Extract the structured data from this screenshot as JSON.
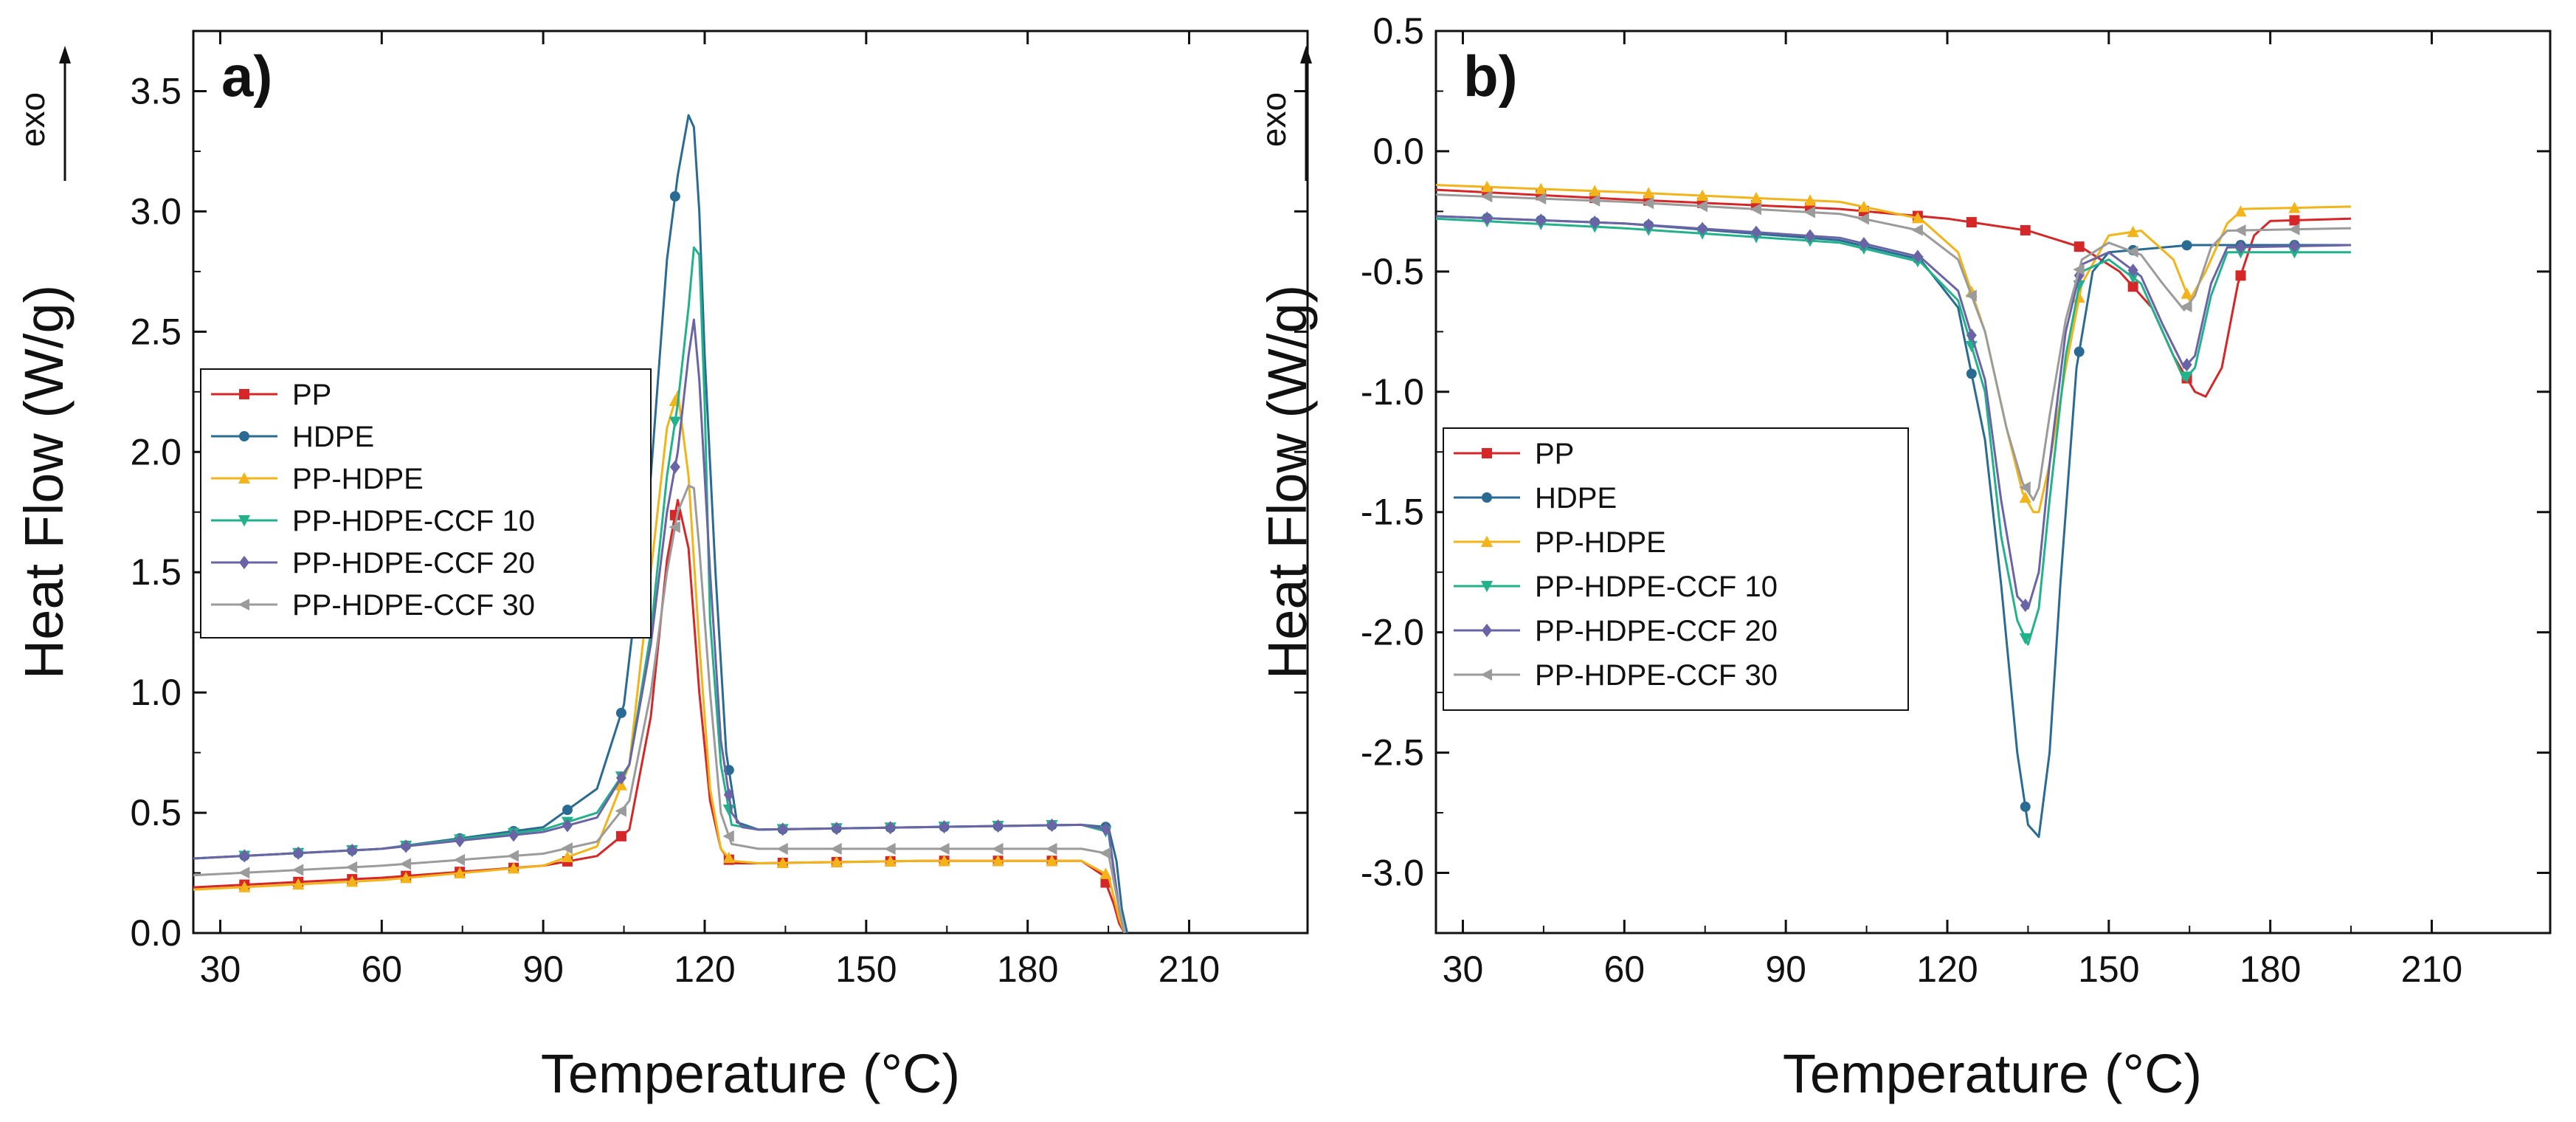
{
  "chart_data": [
    {
      "type": "line",
      "panel_label": "a)",
      "exo_label": "exo",
      "xlabel": "Temperature (°C)",
      "ylabel": "Heat Flow (W/g)",
      "xlim": [
        25,
        232
      ],
      "ylim": [
        0,
        3.75
      ],
      "xticks": [
        30,
        60,
        90,
        120,
        150,
        180,
        210
      ],
      "yticks": [
        0.0,
        0.5,
        1.0,
        1.5,
        2.0,
        2.5,
        3.0,
        3.5
      ],
      "ytick_labels": [
        "0.0",
        "0.5",
        "1.0",
        "1.5",
        "2.0",
        "2.5",
        "3.0",
        "3.5"
      ],
      "legend_position": "middle-left",
      "series": [
        {
          "name": "PP",
          "color": "#d62728",
          "marker": "square",
          "x": [
            25,
            60,
            90,
            100,
            106,
            110,
            113,
            115,
            117,
            119,
            121,
            123,
            125,
            130,
            160,
            190,
            194,
            196,
            197,
            198
          ],
          "y": [
            0.19,
            0.23,
            0.28,
            0.32,
            0.43,
            0.9,
            1.55,
            1.8,
            1.6,
            1.0,
            0.55,
            0.35,
            0.29,
            0.29,
            0.3,
            0.3,
            0.24,
            0.12,
            0.04,
            0.0
          ]
        },
        {
          "name": "HDPE",
          "color": "#2a6b93",
          "marker": "circle",
          "x": [
            25,
            60,
            90,
            100,
            105,
            110,
            113,
            115,
            117,
            118,
            119,
            120,
            122,
            124,
            126,
            130,
            160,
            190,
            195,
            196.5,
            197.5,
            198.5
          ],
          "y": [
            0.31,
            0.35,
            0.44,
            0.6,
            0.95,
            1.9,
            2.8,
            3.15,
            3.4,
            3.35,
            3.0,
            2.4,
            1.5,
            0.75,
            0.46,
            0.43,
            0.44,
            0.45,
            0.44,
            0.3,
            0.1,
            0.0
          ]
        },
        {
          "name": "PP-HDPE",
          "color": "#f2b418",
          "marker": "triangle-up",
          "x": [
            25,
            60,
            90,
            100,
            106,
            110,
            113,
            115,
            117,
            119,
            121,
            123,
            125,
            130,
            160,
            190,
            195,
            197,
            198
          ],
          "y": [
            0.18,
            0.22,
            0.28,
            0.36,
            0.7,
            1.5,
            2.1,
            2.25,
            1.9,
            1.2,
            0.6,
            0.35,
            0.3,
            0.29,
            0.3,
            0.3,
            0.24,
            0.06,
            0.0
          ]
        },
        {
          "name": "PP-HDPE-CCF 10",
          "color": "#21b28c",
          "marker": "triangle-down",
          "x": [
            25,
            60,
            90,
            100,
            106,
            110,
            113,
            115,
            117,
            118,
            119,
            120,
            121,
            123,
            125,
            130,
            160,
            190,
            195,
            197,
            198
          ],
          "y": [
            0.31,
            0.35,
            0.43,
            0.5,
            0.7,
            1.25,
            1.9,
            2.2,
            2.6,
            2.85,
            2.82,
            2.2,
            1.3,
            0.7,
            0.45,
            0.43,
            0.44,
            0.45,
            0.42,
            0.1,
            0.0
          ]
        },
        {
          "name": "PP-HDPE-CCF 20",
          "color": "#6a64a7",
          "marker": "diamond",
          "x": [
            25,
            60,
            90,
            100,
            106,
            110,
            113,
            115,
            117,
            118,
            119,
            121,
            123,
            125,
            127,
            130,
            160,
            190,
            195,
            197,
            198
          ],
          "y": [
            0.31,
            0.35,
            0.42,
            0.48,
            0.7,
            1.2,
            1.75,
            2.0,
            2.4,
            2.55,
            2.3,
            1.5,
            0.8,
            0.5,
            0.44,
            0.43,
            0.44,
            0.45,
            0.43,
            0.1,
            0.0
          ]
        },
        {
          "name": "PP-HDPE-CCF 30",
          "color": "#9b9b9b",
          "marker": "triangle-left",
          "x": [
            25,
            60,
            90,
            100,
            106,
            110,
            113,
            115,
            117,
            118,
            119,
            121,
            123,
            125,
            130,
            160,
            190,
            195,
            197,
            198
          ],
          "y": [
            0.24,
            0.28,
            0.33,
            0.38,
            0.55,
            1.0,
            1.5,
            1.75,
            1.86,
            1.85,
            1.6,
            1.0,
            0.5,
            0.37,
            0.35,
            0.35,
            0.35,
            0.33,
            0.1,
            0.0
          ]
        }
      ]
    },
    {
      "type": "line",
      "panel_label": "b)",
      "exo_label": "exo",
      "xlabel": "Temperature (°C)",
      "ylabel": "Heat Flow (W/g)",
      "xlim": [
        25,
        232
      ],
      "ylim": [
        -3.25,
        0.5
      ],
      "xticks": [
        30,
        60,
        90,
        120,
        150,
        180,
        210
      ],
      "yticks": [
        0.5,
        0.0,
        -0.5,
        -1.0,
        -1.5,
        -2.0,
        -2.5,
        -3.0
      ],
      "ytick_labels": [
        "0.5",
        "0.0",
        "-0.5",
        "-1.0",
        "-1.5",
        "-2.0",
        "-2.5",
        "-3.0"
      ],
      "legend_position": "center-left",
      "series": [
        {
          "name": "PP",
          "color": "#d62728",
          "marker": "square",
          "x": [
            25,
            60,
            100,
            120,
            135,
            145,
            152,
            158,
            162,
            166,
            168,
            171,
            174,
            177,
            180,
            195
          ],
          "y": [
            -0.16,
            -0.2,
            -0.24,
            -0.28,
            -0.33,
            -0.4,
            -0.5,
            -0.65,
            -0.85,
            -1.0,
            -1.02,
            -0.9,
            -0.55,
            -0.35,
            -0.29,
            -0.28
          ]
        },
        {
          "name": "HDPE",
          "color": "#2a6b93",
          "marker": "circle",
          "x": [
            25,
            60,
            100,
            115,
            122,
            127,
            130,
            133,
            135,
            137,
            139,
            141,
            144,
            147,
            150,
            165,
            195
          ],
          "y": [
            -0.27,
            -0.3,
            -0.37,
            -0.45,
            -0.65,
            -1.2,
            -1.8,
            -2.5,
            -2.8,
            -2.85,
            -2.5,
            -1.8,
            -0.9,
            -0.5,
            -0.42,
            -0.39,
            -0.39
          ]
        },
        {
          "name": "PP-HDPE",
          "color": "#f2b418",
          "marker": "triangle-up",
          "x": [
            25,
            60,
            100,
            115,
            122,
            127,
            131,
            134,
            136,
            137,
            139,
            142,
            145,
            150,
            156,
            162,
            165,
            168,
            172,
            175,
            195
          ],
          "y": [
            -0.14,
            -0.17,
            -0.21,
            -0.28,
            -0.42,
            -0.75,
            -1.15,
            -1.42,
            -1.5,
            -1.5,
            -1.3,
            -0.9,
            -0.55,
            -0.35,
            -0.33,
            -0.45,
            -0.62,
            -0.5,
            -0.3,
            -0.24,
            -0.23
          ]
        },
        {
          "name": "PP-HDPE-CCF 10",
          "color": "#21b28c",
          "marker": "triangle-down",
          "x": [
            25,
            60,
            100,
            115,
            122,
            127,
            130,
            133,
            135,
            137,
            139,
            142,
            145,
            150,
            156,
            160,
            164,
            166,
            169,
            172,
            195
          ],
          "y": [
            -0.28,
            -0.32,
            -0.38,
            -0.46,
            -0.62,
            -1.0,
            -1.6,
            -1.95,
            -2.05,
            -1.9,
            -1.45,
            -0.85,
            -0.5,
            -0.45,
            -0.55,
            -0.75,
            -0.95,
            -0.9,
            -0.6,
            -0.42,
            -0.42
          ]
        },
        {
          "name": "PP-HDPE-CCF 20",
          "color": "#6a64a7",
          "marker": "diamond",
          "x": [
            25,
            60,
            100,
            115,
            122,
            127,
            130,
            133,
            135,
            137,
            139,
            142,
            145,
            150,
            156,
            160,
            164,
            166,
            169,
            172,
            195
          ],
          "y": [
            -0.27,
            -0.3,
            -0.36,
            -0.44,
            -0.58,
            -0.95,
            -1.45,
            -1.85,
            -1.9,
            -1.75,
            -1.3,
            -0.75,
            -0.47,
            -0.42,
            -0.52,
            -0.72,
            -0.9,
            -0.85,
            -0.55,
            -0.4,
            -0.39
          ]
        },
        {
          "name": "PP-HDPE-CCF 30",
          "color": "#9b9b9b",
          "marker": "triangle-left",
          "x": [
            25,
            60,
            100,
            115,
            122,
            127,
            131,
            134,
            136,
            137,
            139,
            142,
            145,
            150,
            156,
            160,
            164,
            166,
            169,
            172,
            195
          ],
          "y": [
            -0.18,
            -0.21,
            -0.26,
            -0.33,
            -0.45,
            -0.75,
            -1.15,
            -1.38,
            -1.45,
            -1.4,
            -1.1,
            -0.7,
            -0.45,
            -0.38,
            -0.43,
            -0.55,
            -0.66,
            -0.6,
            -0.4,
            -0.33,
            -0.32
          ]
        }
      ]
    }
  ]
}
